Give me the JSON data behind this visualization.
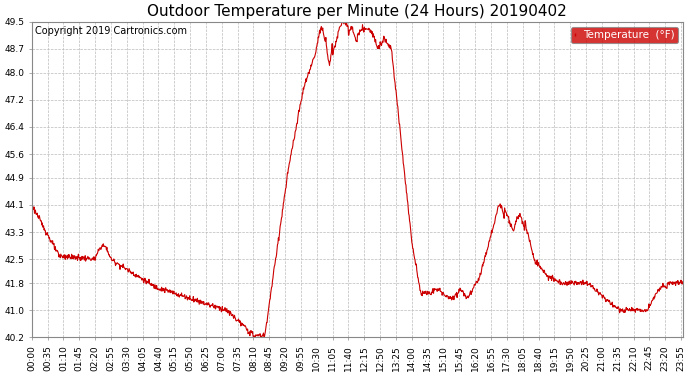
{
  "title": "Outdoor Temperature per Minute (24 Hours) 20190402",
  "copyright": "Copyright 2019 Cartronics.com",
  "legend_label": "Temperature  (°F)",
  "legend_bg": "#cc0000",
  "legend_fg": "#ffffff",
  "line_color": "#cc0000",
  "line_width": 0.8,
  "ylim": [
    40.2,
    49.5
  ],
  "yticks": [
    40.2,
    41.0,
    41.8,
    42.5,
    43.3,
    44.1,
    44.9,
    45.6,
    46.4,
    47.2,
    48.0,
    48.7,
    49.5
  ],
  "xlabel_rotation": 90,
  "grid_color": "#bbbbbb",
  "grid_linestyle": "--",
  "bg_color": "#ffffff",
  "plot_bg_color": "#ffffff",
  "title_fontsize": 11,
  "tick_fontsize": 6.5,
  "copyright_fontsize": 7
}
